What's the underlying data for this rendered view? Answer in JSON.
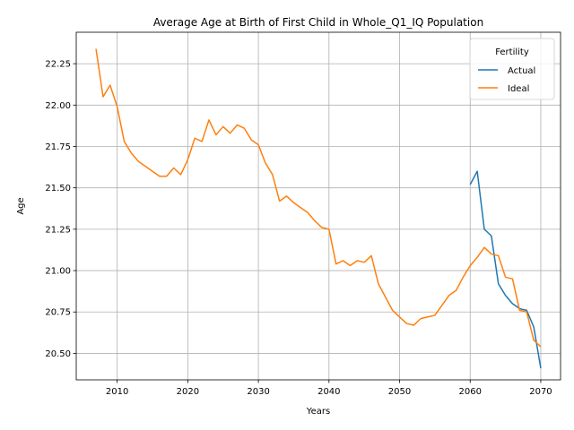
{
  "chart_data": {
    "type": "line",
    "title": "Average Age at Birth of First Child in Whole_Q1_IQ Population",
    "xlabel": "Years",
    "ylabel": "Age",
    "xlim": [
      2004.2,
      2072.8
    ],
    "ylim": [
      20.34,
      22.44
    ],
    "x_ticks": [
      2010,
      2020,
      2030,
      2040,
      2050,
      2060,
      2070
    ],
    "y_ticks": [
      20.5,
      20.75,
      21.0,
      21.25,
      21.5,
      21.75,
      22.0,
      22.25
    ],
    "y_tick_labels": [
      "20.50",
      "20.75",
      "21.00",
      "21.25",
      "21.50",
      "21.75",
      "22.00",
      "22.25"
    ],
    "grid": true,
    "legend": {
      "title": "Fertility",
      "position": "top-right",
      "entries": [
        "Actual",
        "Ideal"
      ]
    },
    "colors": {
      "Actual": "#1f77b4",
      "Ideal": "#ff7f0e"
    },
    "series": [
      {
        "name": "Actual",
        "x": [
          2060,
          2061,
          2062,
          2063,
          2064,
          2065,
          2066,
          2067,
          2068,
          2069,
          2070
        ],
        "y": [
          21.52,
          21.6,
          21.25,
          21.21,
          20.92,
          20.85,
          20.8,
          20.77,
          20.76,
          20.66,
          20.41
        ]
      },
      {
        "name": "Ideal",
        "x": [
          2007,
          2008,
          2009,
          2010,
          2011,
          2012,
          2013,
          2014,
          2015,
          2016,
          2017,
          2018,
          2019,
          2020,
          2021,
          2022,
          2023,
          2024,
          2025,
          2026,
          2027,
          2028,
          2029,
          2030,
          2031,
          2032,
          2033,
          2034,
          2035,
          2036,
          2037,
          2038,
          2039,
          2040,
          2041,
          2042,
          2043,
          2044,
          2045,
          2046,
          2047,
          2048,
          2049,
          2050,
          2051,
          2052,
          2053,
          2054,
          2055,
          2056,
          2057,
          2058,
          2059,
          2060,
          2061,
          2062,
          2063,
          2064,
          2065,
          2066,
          2067,
          2068,
          2069,
          2070
        ],
        "y": [
          22.34,
          22.05,
          22.12,
          21.99,
          21.78,
          21.71,
          21.66,
          21.63,
          21.6,
          21.57,
          21.57,
          21.62,
          21.58,
          21.67,
          21.8,
          21.78,
          21.91,
          21.82,
          21.87,
          21.83,
          21.88,
          21.86,
          21.79,
          21.76,
          21.65,
          21.58,
          21.42,
          21.45,
          21.41,
          21.38,
          21.35,
          21.3,
          21.26,
          21.25,
          21.04,
          21.06,
          21.03,
          21.06,
          21.05,
          21.09,
          20.92,
          20.84,
          20.76,
          20.72,
          20.68,
          20.67,
          20.71,
          20.72,
          20.73,
          20.79,
          20.85,
          20.88,
          20.96,
          21.03,
          21.08,
          21.14,
          21.1,
          21.09,
          20.96,
          20.95,
          20.76,
          20.75,
          20.58,
          20.54
        ]
      }
    ]
  }
}
